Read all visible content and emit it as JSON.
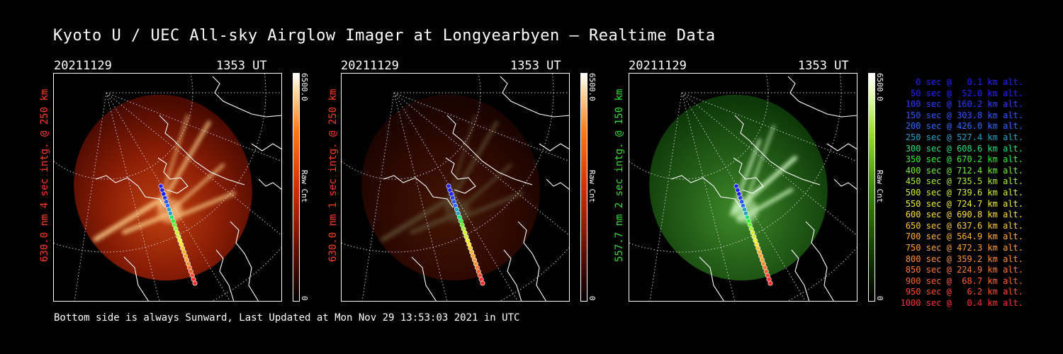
{
  "title": "Kyoto U / UEC All-sky Airglow Imager at Longyearbyen — Realtime Data",
  "footer": "Bottom side is always Sunward, Last Updated at Mon Nov 29 13:53:03 2021 in UTC",
  "panels": [
    {
      "date": "20211129",
      "time": "1353 UT",
      "label": "630.0 nm 4 sec intg. @ 250 km",
      "label_color": "#ff3d1f",
      "cbar_max": "6500.0",
      "cbar_min": "0",
      "cbar_unit": "Raw Cnt",
      "tint": "red",
      "brightness": 1.0
    },
    {
      "date": "20211129",
      "time": "1353 UT",
      "label": "630.0 nm 1 sec intg. @ 250 km",
      "label_color": "#ff3d1f",
      "cbar_max": "6500.0",
      "cbar_min": "0",
      "cbar_unit": "Raw Cnt",
      "tint": "red",
      "brightness": 0.35
    },
    {
      "date": "20211129",
      "time": "1353 UT",
      "label": "557.7 nm 2 sec intg. @ 150 km",
      "label_color": "#33dd33",
      "cbar_max": "6500.0",
      "cbar_min": "0",
      "cbar_unit": "Raw Cnt",
      "tint": "green",
      "brightness": 1.0
    }
  ],
  "legend": [
    {
      "text": "0 sec @   0.1 km alt.",
      "color": "#2222ff"
    },
    {
      "text": "50 sec @  52.0 km alt.",
      "color": "#2222ff"
    },
    {
      "text": "100 sec @ 160.2 km alt.",
      "color": "#2a3cff"
    },
    {
      "text": "150 sec @ 303.8 km alt.",
      "color": "#2a55ff"
    },
    {
      "text": "200 sec @ 426.0 km alt.",
      "color": "#2a6aff"
    },
    {
      "text": "250 sec @ 527.4 km alt.",
      "color": "#22a0c8"
    },
    {
      "text": "300 sec @ 608.6 km alt.",
      "color": "#22e07a"
    },
    {
      "text": "350 sec @ 670.2 km alt.",
      "color": "#30f030"
    },
    {
      "text": "400 sec @ 712.4 km alt.",
      "color": "#6af030"
    },
    {
      "text": "450 sec @ 735.5 km alt.",
      "color": "#a8f030"
    },
    {
      "text": "500 sec @ 739.6 km alt.",
      "color": "#d4f030"
    },
    {
      "text": "550 sec @ 724.7 km alt.",
      "color": "#f0f030"
    },
    {
      "text": "600 sec @ 690.8 km alt.",
      "color": "#ffe030"
    },
    {
      "text": "650 sec @ 637.6 km alt.",
      "color": "#ffc830"
    },
    {
      "text": "700 sec @ 564.9 km alt.",
      "color": "#ffb030"
    },
    {
      "text": "750 sec @ 472.3 km alt.",
      "color": "#ffa030"
    },
    {
      "text": "800 sec @ 359.2 km alt.",
      "color": "#ff9030"
    },
    {
      "text": "850 sec @ 224.9 km alt.",
      "color": "#ff7830"
    },
    {
      "text": "900 sec @  68.7 km alt.",
      "color": "#ff6030"
    },
    {
      "text": "950 sec @   6.2 km alt.",
      "color": "#ff4a30"
    },
    {
      "text": "1000 sec @   0.4 km alt.",
      "color": "#ff3030"
    }
  ]
}
